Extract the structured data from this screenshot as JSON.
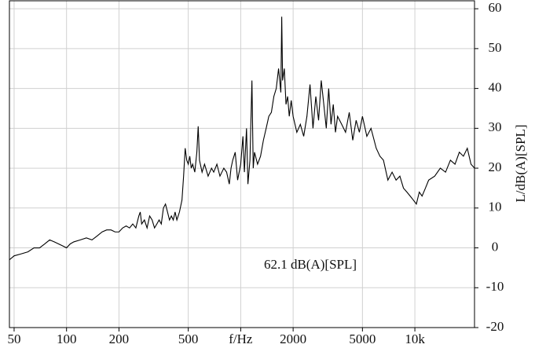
{
  "chart_data": {
    "type": "line",
    "y_label": "L/dB(A)[SPL]",
    "annotation": "62.1 dB(A)[SPL]",
    "xscale": "log",
    "grid": true,
    "color": "#000000",
    "xlim": [
      47,
      22000
    ],
    "ylim": [
      -20,
      62
    ],
    "xticks": [
      50,
      100,
      200,
      500,
      {
        "value": 1000,
        "label": "f/Hz"
      },
      2000,
      5000,
      {
        "value": 10000,
        "label": "10k"
      }
    ],
    "yticks": [
      -20,
      -10,
      0,
      10,
      20,
      30,
      40,
      50,
      60
    ],
    "x": [
      47,
      50,
      55,
      60,
      65,
      70,
      75,
      80,
      85,
      90,
      95,
      100,
      105,
      110,
      120,
      130,
      140,
      150,
      160,
      170,
      180,
      190,
      200,
      210,
      220,
      230,
      240,
      250,
      260,
      265,
      270,
      280,
      290,
      300,
      310,
      320,
      330,
      340,
      350,
      360,
      370,
      380,
      390,
      400,
      410,
      420,
      430,
      445,
      460,
      470,
      480,
      490,
      500,
      510,
      520,
      530,
      545,
      560,
      570,
      580,
      600,
      620,
      650,
      680,
      700,
      730,
      760,
      800,
      830,
      860,
      880,
      900,
      930,
      960,
      1000,
      1030,
      1050,
      1080,
      1100,
      1130,
      1160,
      1180,
      1200,
      1250,
      1300,
      1350,
      1400,
      1450,
      1500,
      1550,
      1600,
      1650,
      1700,
      1720,
      1740,
      1780,
      1820,
      1860,
      1900,
      1950,
      2000,
      2100,
      2200,
      2300,
      2400,
      2500,
      2600,
      2700,
      2800,
      2900,
      3000,
      3100,
      3200,
      3300,
      3400,
      3500,
      3600,
      3800,
      4000,
      4200,
      4400,
      4600,
      4800,
      5000,
      5300,
      5600,
      6000,
      6300,
      6600,
      7000,
      7400,
      7800,
      8200,
      8600,
      9000,
      9400,
      9800,
      10200,
      10600,
      11000,
      11500,
      12000,
      13000,
      14000,
      15000,
      16000,
      17000,
      18000,
      19000,
      20000,
      21000,
      22000
    ],
    "values": [
      -3,
      -2,
      -1.5,
      -1,
      0,
      0,
      1,
      2,
      1.5,
      1,
      0.5,
      0,
      1,
      1.5,
      2,
      2.5,
      2,
      3,
      4,
      4.5,
      4.5,
      4,
      4,
      5,
      5.5,
      5,
      6,
      5,
      8,
      9,
      6,
      7,
      5,
      8,
      7,
      5,
      6,
      7,
      6,
      10,
      11,
      9,
      7,
      8,
      7,
      9,
      7,
      9,
      12,
      18,
      25,
      22,
      21,
      23,
      20,
      21,
      19,
      24,
      30.5,
      22,
      19,
      21,
      18,
      20,
      19,
      21,
      18,
      20,
      19,
      16,
      20,
      22,
      24,
      17,
      21,
      28,
      19,
      30,
      16,
      22,
      42,
      20,
      24,
      21,
      23,
      27,
      30,
      33,
      34,
      38,
      40,
      45,
      39,
      58,
      42,
      45,
      36,
      38,
      33,
      37,
      33,
      29,
      31,
      28,
      33,
      41,
      30,
      38,
      32,
      42,
      36,
      30,
      40,
      31,
      36,
      29,
      33,
      31,
      29,
      34,
      27,
      32,
      29,
      33,
      28,
      30,
      25,
      23,
      22,
      17,
      19,
      17,
      18,
      15,
      14,
      13,
      12,
      11,
      14,
      13,
      15,
      17,
      18,
      20,
      19,
      22,
      21,
      24,
      23,
      25,
      21,
      20
    ]
  }
}
